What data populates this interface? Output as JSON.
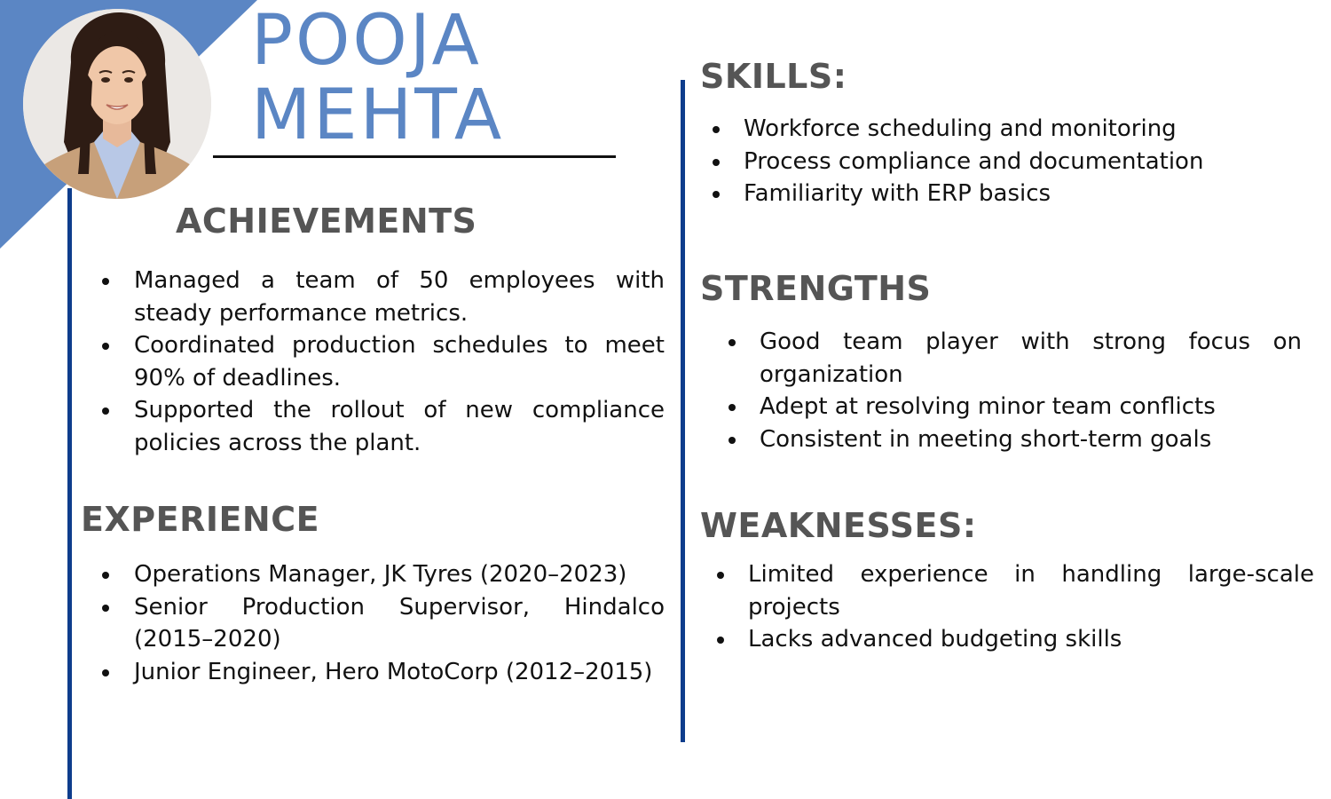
{
  "profile": {
    "first_name": "POOJA",
    "last_name": "MEHTA",
    "accent_color": "#5b86c4",
    "rule_color": "#0e3d8c"
  },
  "achievements": {
    "title": "ACHIEVEMENTS",
    "items": [
      "Managed a team of 50 employees with steady performance metrics.",
      "Coordinated production schedules to meet 90% of deadlines.",
      "Supported the rollout of new compliance policies across the plant."
    ]
  },
  "experience": {
    "title": "EXPERIENCE",
    "items": [
      "Operations Manager, JK Tyres (2020–2023)",
      "Senior Production Supervisor, Hindalco (2015–2020)",
      "Junior Engineer, Hero MotoCorp (2012–2015)"
    ]
  },
  "skills": {
    "title": "SKILLS:",
    "items": [
      "Workforce scheduling and monitoring",
      "Process compliance and documentation",
      "Familiarity with ERP basics"
    ]
  },
  "strengths": {
    "title": "STRENGTHS",
    "items": [
      "Good team player with strong focus on organization",
      "Adept at resolving minor team conflicts",
      "Consistent in meeting short-term goals"
    ]
  },
  "weaknesses": {
    "title": "WEAKNESSES:",
    "items": [
      "Limited experience in handling large-scale projects",
      "Lacks advanced budgeting skills"
    ]
  }
}
